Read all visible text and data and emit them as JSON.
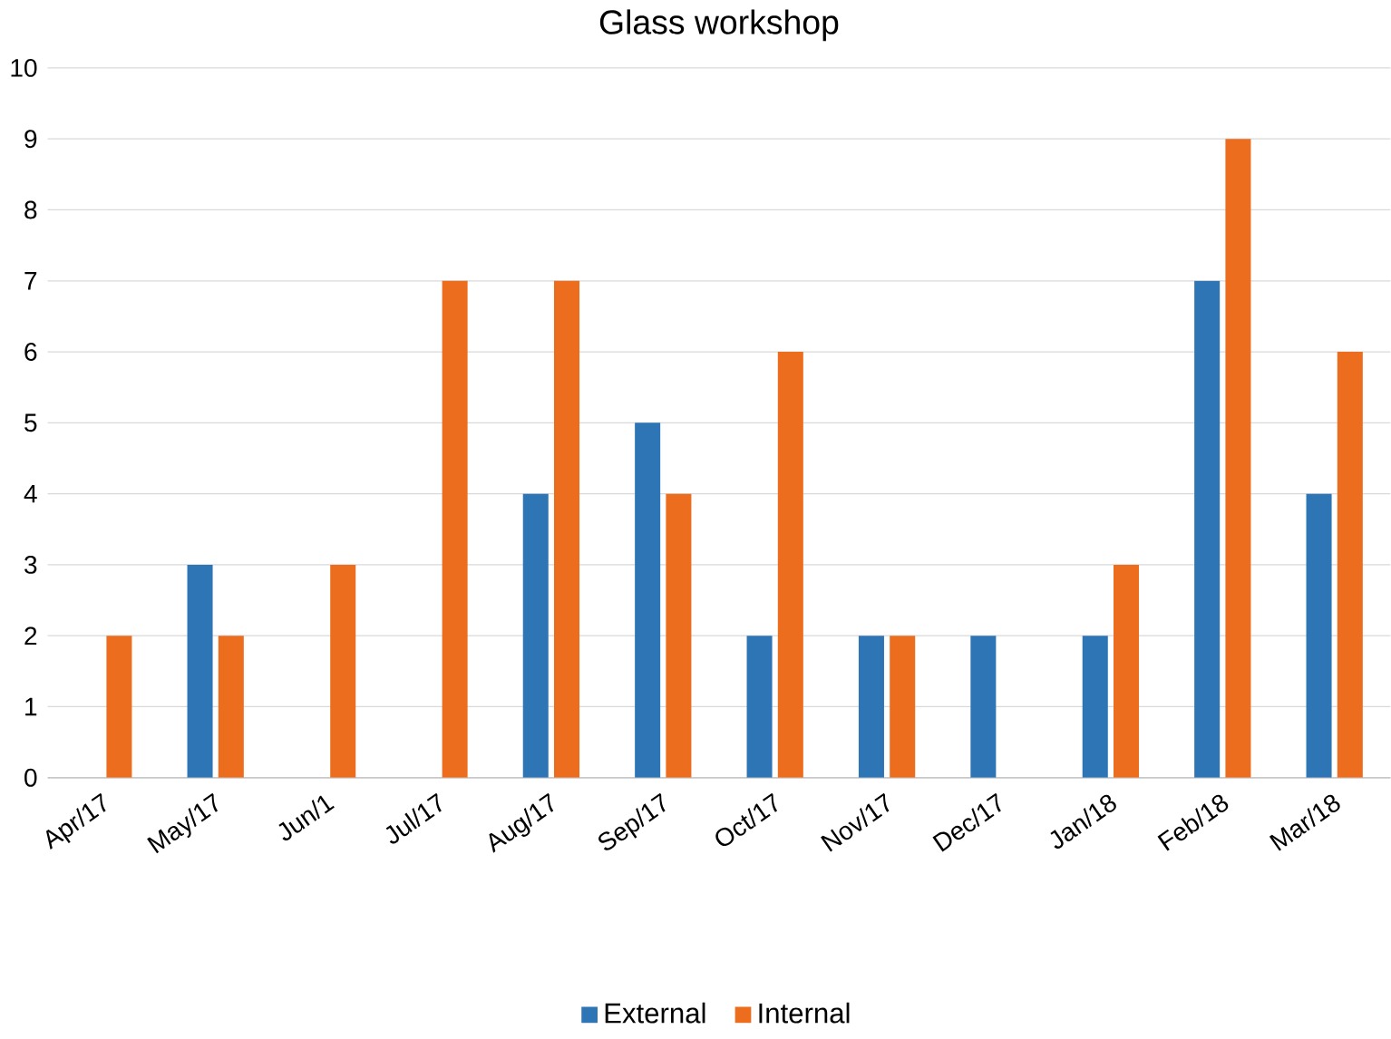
{
  "chart_data": {
    "type": "bar",
    "title": "Glass workshop",
    "categories": [
      "Apr/17",
      "May/17",
      "Jun/1",
      "Jul/17",
      "Aug/17",
      "Sep/17",
      "Oct/17",
      "Nov/17",
      "Dec/17",
      "Jan/18",
      "Feb/18",
      "Mar/18"
    ],
    "series": [
      {
        "name": "External",
        "color": "#2e75b6",
        "values": [
          0,
          3,
          0,
          0,
          4,
          5,
          2,
          2,
          2,
          2,
          7,
          4
        ]
      },
      {
        "name": "Internal",
        "color": "#ed6d1f",
        "values": [
          2,
          2,
          3,
          7,
          7,
          4,
          6,
          2,
          0,
          3,
          9,
          6
        ]
      }
    ],
    "ylim": [
      0,
      10
    ],
    "yticks": [
      0,
      1,
      2,
      3,
      4,
      5,
      6,
      7,
      8,
      9,
      10
    ],
    "grid": "y",
    "legend": "bottom"
  }
}
